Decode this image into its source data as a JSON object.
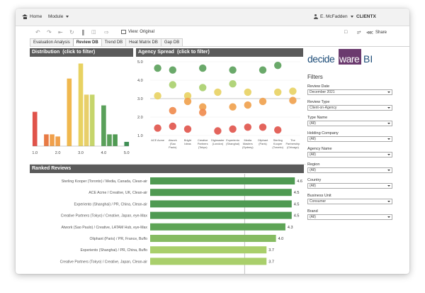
{
  "topbar": {
    "home_label": "Home",
    "module_label": "Module",
    "user_name": "E. McFadden",
    "client_label": "CLIENTX"
  },
  "toolbar": {
    "view_label": "View: Original",
    "share_label": "Share"
  },
  "tabs": [
    {
      "label": "Evaluation Analysis",
      "active": false
    },
    {
      "label": "Review DB",
      "active": true
    },
    {
      "label": "Trend DB",
      "active": false
    },
    {
      "label": "Heat Matrix DB",
      "active": false
    },
    {
      "label": "Gap DB",
      "active": false
    }
  ],
  "distribution": {
    "title": "Distribution",
    "subtitle": "(click to filter)"
  },
  "spread": {
    "title": "Agency Spread",
    "subtitle": "(click to filter)"
  },
  "ranked": {
    "title": "Ranked Reviews"
  },
  "logo": {
    "decide": "decide",
    "ware": "ware",
    "bi": "BI"
  },
  "filters": {
    "title": "Filters",
    "items": [
      {
        "label": "Review Date",
        "value": "December 2021"
      },
      {
        "label": "Review Type",
        "value": "Client-on-Agency"
      },
      {
        "label": "Type Name",
        "value": "(All)"
      },
      {
        "label": "Holding Company",
        "value": "(All)"
      },
      {
        "label": "Agency Name",
        "value": "(All)"
      },
      {
        "label": "Region",
        "value": "(All)"
      },
      {
        "label": "Country",
        "value": "(All)"
      },
      {
        "label": "Business Unit",
        "value": "Consumer"
      },
      {
        "label": "Brand",
        "value": "(All)"
      }
    ]
  },
  "colors": {
    "red": "#e0534a",
    "orange": "#f0a04b",
    "yellow": "#e8d262",
    "yellowgreen": "#a9cf6b",
    "green": "#5aa05a",
    "darkgreen": "#2f8a4c",
    "bar_green": "#4f9a52",
    "bar_light": "#8dbf6a",
    "header_grey": "#5a5a5a"
  },
  "chart_data": [
    {
      "type": "bar",
      "title": "Distribution",
      "x": [
        1.0,
        1.5,
        1.75,
        2.0,
        2.5,
        3.0,
        3.25,
        3.5,
        4.0,
        4.25,
        4.5,
        5.0
      ],
      "values": [
        1.6,
        0.55,
        0.55,
        0.45,
        3.15,
        3.85,
        2.4,
        2.4,
        1.9,
        0.55,
        0.55,
        0.2
      ],
      "colors": [
        "#e0534a",
        "#e87a44",
        "#f0a04b",
        "#f0a04b",
        "#f0b84e",
        "#e8d262",
        "#e8cf6a",
        "#c6d56b",
        "#5aa05a",
        "#5aa05a",
        "#4f9a52",
        "#3f8f55"
      ],
      "xticks": [
        "1.0",
        "2.0",
        "3.0",
        "4.0",
        "5.0"
      ],
      "xlim": [
        0.9,
        5.1
      ],
      "ylim": [
        0,
        4.0
      ]
    },
    {
      "type": "scatter",
      "title": "Agency Spread",
      "categories": [
        "ACE Acme",
        "Atwork (Sao Paulo)",
        "Bright Ideas",
        "Creative Partners (Tokyo)",
        "Digimaster (London)",
        "Experiento (Shanghai)",
        "Media Masters (Sydney)",
        "Oliphant (Paris)",
        "Sterling Kooper (Toronto)",
        "The Partnership (Chicago)"
      ],
      "yticks": [
        "1.0",
        "2.0",
        "3.0",
        "4.0",
        "5.0"
      ],
      "ylim": [
        1.0,
        5.0
      ],
      "reference_line": 3.0,
      "points": [
        {
          "cat": 0,
          "y": 4.65
        },
        {
          "cat": 0,
          "y": 3.15
        },
        {
          "cat": 0,
          "y": 1.4
        },
        {
          "cat": 1,
          "y": 4.55
        },
        {
          "cat": 1,
          "y": 3.75
        },
        {
          "cat": 1,
          "y": 2.35
        },
        {
          "cat": 1,
          "y": 1.5
        },
        {
          "cat": 2,
          "y": 3.15
        },
        {
          "cat": 2,
          "y": 2.85
        },
        {
          "cat": 2,
          "y": 1.35
        },
        {
          "cat": 3,
          "y": 4.65
        },
        {
          "cat": 3,
          "y": 3.6
        },
        {
          "cat": 3,
          "y": 2.55
        },
        {
          "cat": 3,
          "y": 2.25
        },
        {
          "cat": 4,
          "y": 3.35
        },
        {
          "cat": 4,
          "y": 1.25
        },
        {
          "cat": 5,
          "y": 4.55
        },
        {
          "cat": 5,
          "y": 3.8
        },
        {
          "cat": 5,
          "y": 2.55
        },
        {
          "cat": 5,
          "y": 1.35
        },
        {
          "cat": 6,
          "y": 3.35
        },
        {
          "cat": 6,
          "y": 2.65
        },
        {
          "cat": 6,
          "y": 1.45
        },
        {
          "cat": 7,
          "y": 4.55
        },
        {
          "cat": 7,
          "y": 2.85
        },
        {
          "cat": 7,
          "y": 1.45
        },
        {
          "cat": 8,
          "y": 4.8
        },
        {
          "cat": 8,
          "y": 3.35
        },
        {
          "cat": 8,
          "y": 1.3
        },
        {
          "cat": 9,
          "y": 3.4
        },
        {
          "cat": 9,
          "y": 2.9
        }
      ]
    },
    {
      "type": "bar",
      "orientation": "horizontal",
      "title": "Ranked Reviews",
      "categories": [
        "Sterling Kooper (Toronto) / Media, Canada, Clean-air",
        "ACE Acme / Creative, UK, Clean-air",
        "Experiento (Shanghai) / PR, China, Clean-air",
        "Creative Partners (Tokyo) / Creative, Japan, eye-Max",
        "Atwork (Sao Paulo) / Creative, LATAM Hub, eye-Max",
        "Oliphant (Paris) / PR, France, Buffo",
        "Experiento (Shanghai) / PR, China, Buffo",
        "Creative Partners (Tokyo) / Creative, Japan, Clean-air"
      ],
      "values": [
        4.6,
        4.5,
        4.5,
        4.5,
        4.3,
        4.0,
        3.7,
        3.7
      ],
      "value_labels": [
        "4.6",
        "4.5",
        "4.5",
        "4.5",
        "4.3",
        "4.0",
        "3.7",
        "3.7"
      ],
      "xlim": [
        0,
        5.0
      ],
      "reference_line": 3.0
    }
  ]
}
